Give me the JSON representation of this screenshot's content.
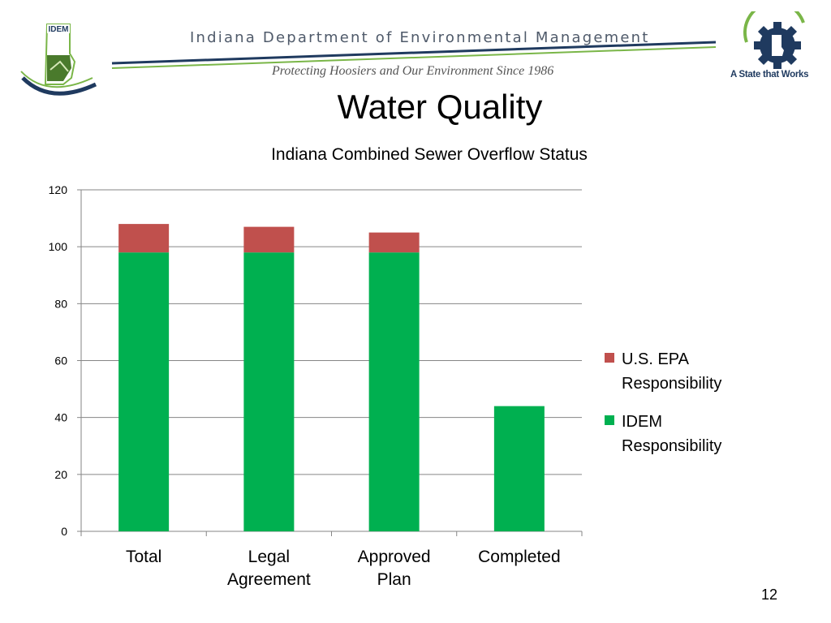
{
  "header": {
    "org_name": "Indiana  Department  of  Environmental  Management",
    "tagline": "Protecting Hoosiers and Our Environment Since 1986",
    "logo_text": "IDEM",
    "state_logo_text": "A State that Works"
  },
  "slide": {
    "title": "Water Quality",
    "page_number": "12"
  },
  "colors": {
    "idem": "#00b050",
    "epa": "#c0504d",
    "gridline": "#868686",
    "brand_green": "#7ab648",
    "brand_navy": "#1f3a5f"
  },
  "chart_data": {
    "type": "bar",
    "stacked": true,
    "title": "Indiana Combined Sewer Overflow Status",
    "categories": [
      "Total",
      "Legal Agreement",
      "Approved Plan",
      "Completed"
    ],
    "category_label_lines": [
      [
        "Total"
      ],
      [
        "Legal",
        "Agreement"
      ],
      [
        "Approved",
        "Plan"
      ],
      [
        "Completed"
      ]
    ],
    "series": [
      {
        "name": "IDEM Responsibility",
        "values": [
          98,
          98,
          98,
          44
        ],
        "color": "#00b050"
      },
      {
        "name": "U.S. EPA Responsibility",
        "values": [
          10,
          9,
          7,
          0
        ],
        "color": "#c0504d"
      }
    ],
    "ylim": [
      0,
      120
    ],
    "yticks": [
      0,
      20,
      40,
      60,
      80,
      100,
      120
    ],
    "grid": true,
    "legend_position": "right",
    "legend_order": [
      "U.S. EPA Responsibility",
      "IDEM Responsibility"
    ]
  }
}
